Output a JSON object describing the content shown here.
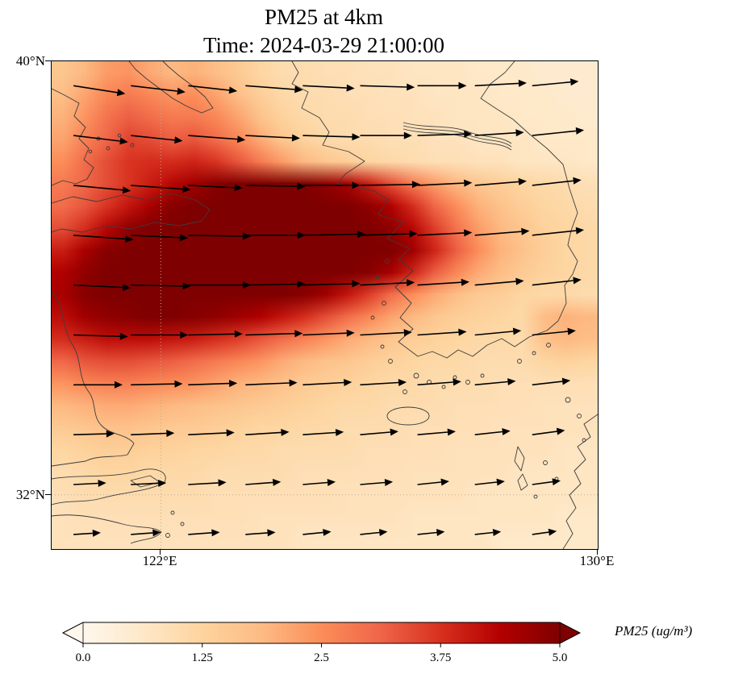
{
  "chart_data": {
    "type": "heatmap",
    "title": "PM25 at 4km",
    "subtitle": "Time: 2024-03-29 21:00:00",
    "variable": "PM25",
    "level": "4km",
    "time": "2024-03-29 21:00:00",
    "lon_range": [
      120,
      130
    ],
    "lat_range": [
      31,
      40
    ],
    "x_ticks": [
      {
        "label": "122°E",
        "value": 122
      },
      {
        "label": "130°E",
        "value": 130
      }
    ],
    "y_ticks": [
      {
        "label": "40°N",
        "value": 40
      },
      {
        "label": "32°N",
        "value": 32
      }
    ],
    "gridlines": {
      "lons": [
        122
      ],
      "lats": [
        32
      ]
    },
    "colormap": {
      "name": "OrRd",
      "stops": [
        [
          0,
          "#fff7ec"
        ],
        [
          0.125,
          "#fee8c8"
        ],
        [
          0.25,
          "#fdd49e"
        ],
        [
          0.375,
          "#fdbb84"
        ],
        [
          0.5,
          "#fc8d59"
        ],
        [
          0.625,
          "#ef6548"
        ],
        [
          0.75,
          "#d7301f"
        ],
        [
          0.875,
          "#b30000"
        ],
        [
          1,
          "#7f0000"
        ]
      ]
    },
    "colorbar": {
      "vmin": 0,
      "vmax": 5,
      "extend": "both",
      "ticks": [
        0,
        1.25,
        2.5,
        3.75,
        5
      ],
      "tick_labels": [
        "0.0",
        "1.25",
        "2.5",
        "3.75",
        "5.0"
      ],
      "label": "PM25 (ug/m³)"
    },
    "grid": {
      "nlon": 25,
      "nlat": 22,
      "order": "rows north to south, columns west to east",
      "values": [
        [
          1.6,
          1.9,
          2.3,
          2.4,
          2.1,
          1.9,
          2.0,
          1.8,
          1.5,
          1.2,
          1.0,
          1.0,
          0.9,
          0.9,
          0.8,
          0.8,
          0.7,
          0.7,
          0.7,
          0.6,
          0.6,
          0.6,
          0.5,
          0.5,
          0.5
        ],
        [
          1.8,
          2.2,
          2.6,
          2.8,
          2.6,
          2.4,
          2.5,
          2.2,
          1.8,
          1.4,
          1.1,
          1.0,
          1.0,
          0.9,
          0.9,
          0.8,
          0.8,
          0.7,
          0.7,
          0.7,
          0.6,
          0.6,
          0.6,
          0.5,
          0.5
        ],
        [
          2.0,
          2.4,
          2.9,
          3.2,
          3.0,
          2.8,
          2.8,
          2.6,
          2.2,
          1.7,
          1.3,
          1.1,
          1.0,
          1.0,
          0.9,
          0.9,
          0.8,
          0.8,
          0.7,
          0.7,
          0.7,
          0.6,
          0.6,
          0.6,
          0.5
        ],
        [
          2.2,
          2.7,
          3.1,
          3.5,
          3.4,
          3.2,
          3.3,
          3.0,
          2.6,
          2.1,
          1.6,
          1.3,
          1.1,
          1.0,
          1.0,
          0.9,
          0.9,
          0.8,
          0.8,
          0.7,
          0.7,
          0.7,
          0.6,
          0.6,
          0.6
        ],
        [
          2.5,
          3.0,
          3.4,
          3.7,
          3.8,
          3.8,
          3.9,
          3.7,
          3.3,
          2.8,
          2.3,
          1.9,
          1.6,
          1.4,
          1.2,
          1.1,
          1.0,
          0.9,
          0.9,
          0.8,
          0.8,
          0.7,
          0.7,
          0.7,
          0.6
        ],
        [
          2.8,
          3.1,
          3.4,
          3.7,
          4.0,
          4.3,
          4.6,
          4.9,
          5.0,
          5.0,
          5.0,
          5.0,
          4.8,
          4.5,
          4.0,
          3.4,
          2.8,
          2.3,
          1.9,
          1.6,
          1.4,
          1.2,
          1.1,
          1.0,
          0.9
        ],
        [
          3.0,
          3.3,
          3.7,
          4.1,
          4.5,
          4.9,
          5.0,
          5.0,
          5.0,
          5.0,
          5.0,
          5.0,
          5.0,
          5.0,
          4.8,
          4.4,
          3.8,
          3.1,
          2.5,
          2.0,
          1.7,
          1.4,
          1.2,
          1.1,
          1.0
        ],
        [
          3.4,
          3.8,
          4.3,
          4.8,
          5.0,
          5.0,
          5.0,
          5.0,
          5.0,
          5.0,
          5.0,
          5.0,
          5.0,
          5.0,
          5.0,
          4.8,
          4.3,
          3.6,
          2.9,
          2.3,
          1.9,
          1.6,
          1.3,
          1.2,
          1.1
        ],
        [
          4.0,
          4.5,
          4.9,
          5.0,
          5.0,
          5.0,
          5.0,
          5.0,
          5.0,
          5.0,
          5.0,
          5.0,
          5.0,
          5.0,
          5.0,
          5.0,
          4.6,
          3.9,
          3.2,
          2.5,
          2.0,
          1.7,
          1.4,
          1.2,
          1.1
        ],
        [
          4.4,
          4.8,
          5.0,
          5.0,
          5.0,
          5.0,
          5.0,
          5.0,
          5.0,
          5.0,
          5.0,
          5.0,
          5.0,
          5.0,
          4.9,
          4.5,
          3.9,
          3.2,
          2.6,
          2.1,
          1.8,
          1.5,
          1.3,
          1.2,
          1.1
        ],
        [
          4.5,
          4.9,
          5.0,
          5.0,
          5.0,
          5.0,
          5.0,
          5.0,
          5.0,
          5.0,
          5.0,
          4.9,
          4.6,
          4.1,
          3.6,
          3.0,
          2.5,
          2.1,
          1.8,
          1.5,
          1.4,
          1.2,
          1.1,
          1.1,
          1.0
        ],
        [
          4.2,
          4.6,
          4.8,
          4.9,
          5.0,
          5.0,
          4.9,
          4.8,
          4.6,
          4.4,
          4.1,
          3.8,
          3.4,
          3.0,
          2.6,
          2.2,
          1.9,
          1.6,
          1.4,
          1.3,
          1.2,
          1.1,
          1.8,
          2.0,
          1.9
        ],
        [
          3.8,
          4.0,
          4.2,
          4.2,
          4.2,
          4.1,
          4.0,
          3.8,
          3.6,
          3.3,
          3.0,
          2.7,
          2.4,
          2.1,
          1.9,
          1.6,
          1.4,
          1.3,
          1.2,
          1.1,
          1.1,
          1.0,
          1.7,
          1.9,
          1.8
        ],
        [
          3.1,
          3.3,
          3.4,
          3.4,
          3.3,
          3.2,
          3.0,
          2.8,
          2.6,
          2.4,
          2.1,
          1.9,
          1.7,
          1.6,
          1.4,
          1.3,
          1.2,
          1.1,
          1.1,
          1.0,
          1.0,
          1.0,
          1.2,
          1.3,
          1.2
        ],
        [
          2.4,
          2.6,
          2.7,
          2.7,
          2.6,
          2.5,
          2.4,
          2.2,
          2.0,
          1.9,
          1.7,
          1.5,
          1.4,
          1.3,
          1.2,
          1.1,
          1.1,
          1.0,
          1.0,
          1.0,
          0.9,
          0.9,
          0.9,
          0.9,
          0.9
        ],
        [
          1.9,
          2.0,
          2.1,
          2.1,
          2.0,
          1.9,
          1.8,
          1.7,
          1.6,
          1.5,
          1.4,
          1.3,
          1.2,
          1.1,
          1.1,
          1.0,
          1.0,
          1.0,
          0.9,
          0.9,
          0.9,
          0.9,
          0.8,
          0.8,
          0.8
        ],
        [
          1.5,
          1.6,
          1.7,
          1.7,
          1.6,
          1.5,
          1.5,
          1.4,
          1.3,
          1.2,
          1.2,
          1.1,
          1.1,
          1.0,
          1.0,
          1.0,
          0.9,
          0.9,
          0.9,
          0.9,
          0.8,
          0.8,
          0.8,
          0.8,
          0.8
        ],
        [
          1.2,
          1.3,
          1.4,
          1.4,
          1.3,
          1.3,
          1.2,
          1.2,
          1.1,
          1.1,
          1.0,
          1.0,
          1.0,
          1.0,
          0.9,
          0.9,
          0.9,
          0.9,
          0.8,
          0.8,
          0.8,
          0.8,
          0.8,
          0.7,
          0.7
        ],
        [
          1.0,
          1.1,
          1.2,
          1.2,
          1.1,
          1.1,
          1.1,
          1.0,
          1.0,
          1.0,
          1.0,
          0.9,
          0.9,
          0.9,
          0.9,
          0.9,
          0.8,
          0.8,
          0.8,
          0.8,
          0.8,
          0.7,
          0.7,
          0.7,
          0.7
        ],
        [
          0.9,
          1.0,
          1.0,
          1.0,
          1.0,
          1.0,
          1.0,
          0.9,
          0.9,
          0.9,
          0.9,
          0.9,
          0.9,
          0.8,
          0.8,
          0.8,
          0.8,
          0.8,
          0.8,
          0.7,
          0.7,
          0.7,
          0.7,
          0.7,
          0.7
        ],
        [
          0.8,
          0.9,
          0.9,
          0.9,
          0.9,
          0.9,
          0.9,
          0.9,
          0.9,
          0.8,
          0.8,
          0.8,
          0.8,
          0.8,
          0.8,
          0.8,
          0.7,
          0.7,
          0.7,
          0.7,
          0.7,
          0.7,
          0.7,
          0.6,
          0.6
        ],
        [
          0.8,
          0.8,
          0.8,
          0.8,
          0.8,
          0.8,
          0.8,
          0.8,
          0.8,
          0.8,
          0.8,
          0.7,
          0.7,
          0.7,
          0.7,
          0.7,
          0.7,
          0.7,
          0.7,
          0.7,
          0.6,
          0.6,
          0.6,
          0.6,
          0.6
        ]
      ]
    },
    "quiver": {
      "units": "degrees displacement, eastward u positive, northward v positive",
      "lons": [
        120.4,
        121.45,
        122.5,
        123.55,
        124.6,
        125.65,
        126.7,
        127.75,
        128.8
      ],
      "lats": [
        39.55,
        38.63,
        37.71,
        36.79,
        35.87,
        34.95,
        34.03,
        33.11,
        32.19,
        31.27
      ],
      "u": [
        [
          0.95,
          1.0,
          0.9,
          1.05,
          0.95,
          1.0,
          0.9,
          0.95,
          0.85
        ],
        [
          1.0,
          0.95,
          1.05,
          1.0,
          1.05,
          0.95,
          1.0,
          0.9,
          0.95
        ],
        [
          1.05,
          1.1,
          1.0,
          1.1,
          1.05,
          1.1,
          1.0,
          0.95,
          0.9
        ],
        [
          1.1,
          1.05,
          1.15,
          1.1,
          1.15,
          1.05,
          1.0,
          1.0,
          0.95
        ],
        [
          1.05,
          1.1,
          1.15,
          1.1,
          1.05,
          1.0,
          0.95,
          0.9,
          0.9
        ],
        [
          1.0,
          1.05,
          1.0,
          1.05,
          0.95,
          0.95,
          0.9,
          0.85,
          0.8
        ],
        [
          0.9,
          0.95,
          0.9,
          0.95,
          0.9,
          0.85,
          0.8,
          0.75,
          0.7
        ],
        [
          0.75,
          0.8,
          0.85,
          0.8,
          0.75,
          0.7,
          0.7,
          0.65,
          0.6
        ],
        [
          0.6,
          0.65,
          0.7,
          0.65,
          0.6,
          0.6,
          0.58,
          0.55,
          0.52
        ],
        [
          0.5,
          0.55,
          0.58,
          0.55,
          0.52,
          0.5,
          0.5,
          0.48,
          0.45
        ]
      ],
      "v": [
        [
          -0.15,
          -0.12,
          -0.1,
          -0.08,
          -0.05,
          -0.03,
          0.0,
          0.05,
          0.08
        ],
        [
          -0.12,
          -0.1,
          -0.08,
          -0.05,
          -0.03,
          0.0,
          0.03,
          0.06,
          0.1
        ],
        [
          -0.1,
          -0.08,
          -0.05,
          -0.02,
          0.0,
          0.02,
          0.05,
          0.08,
          0.1
        ],
        [
          -0.08,
          -0.05,
          -0.02,
          0.0,
          0.02,
          0.03,
          0.05,
          0.08,
          0.1
        ],
        [
          -0.05,
          -0.02,
          0.0,
          0.02,
          0.03,
          0.05,
          0.06,
          0.08,
          0.1
        ],
        [
          -0.03,
          0.0,
          0.02,
          0.03,
          0.04,
          0.05,
          0.06,
          0.08,
          0.08
        ],
        [
          0.0,
          0.02,
          0.03,
          0.04,
          0.05,
          0.05,
          0.06,
          0.07,
          0.08
        ],
        [
          0.02,
          0.03,
          0.04,
          0.05,
          0.05,
          0.06,
          0.06,
          0.07,
          0.08
        ],
        [
          0.03,
          0.03,
          0.04,
          0.05,
          0.05,
          0.05,
          0.06,
          0.06,
          0.07
        ],
        [
          0.03,
          0.04,
          0.04,
          0.04,
          0.05,
          0.05,
          0.05,
          0.05,
          0.06
        ]
      ]
    }
  }
}
